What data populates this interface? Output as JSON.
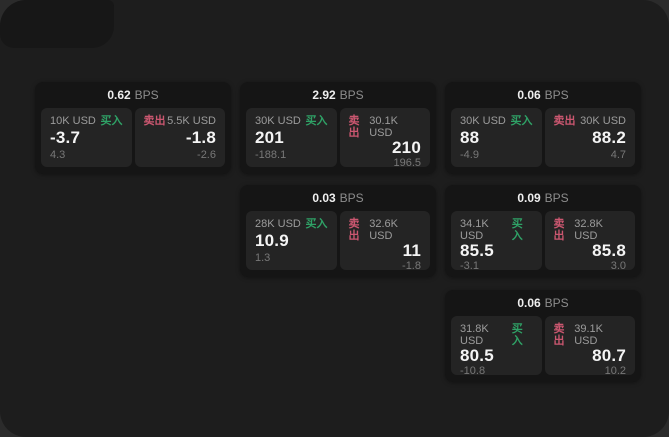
{
  "page": {
    "bps_unit": "BPS",
    "buy_label": "买入",
    "sell_label": "卖出"
  },
  "colors": {
    "background": "#2b2b2b",
    "surface": "#1d1d1d",
    "card": "#151515",
    "panel": "#242424",
    "buy_accent": "#2fa166",
    "sell_accent": "#cb5770"
  },
  "cards": [
    {
      "bps": "0.62",
      "row": 1,
      "col": 1,
      "buy": {
        "amount": "10K USD",
        "price": "-3.7",
        "delta": "4.3"
      },
      "sell": {
        "amount": "5.5K USD",
        "price": "-1.8",
        "delta": "-2.6"
      }
    },
    {
      "bps": "2.92",
      "row": 1,
      "col": 2,
      "buy": {
        "amount": "30K USD",
        "price": "201",
        "delta": "-188.1"
      },
      "sell": {
        "amount": "30.1K USD",
        "price": "210",
        "delta": "196.5"
      }
    },
    {
      "bps": "0.06",
      "row": 1,
      "col": 3,
      "buy": {
        "amount": "30K USD",
        "price": "88",
        "delta": "-4.9"
      },
      "sell": {
        "amount": "30K USD",
        "price": "88.2",
        "delta": "4.7"
      }
    },
    {
      "bps": "0.03",
      "row": 2,
      "col": 2,
      "buy": {
        "amount": "28K USD",
        "price": "10.9",
        "delta": "1.3"
      },
      "sell": {
        "amount": "32.6K USD",
        "price": "11",
        "delta": "-1.8"
      }
    },
    {
      "bps": "0.09",
      "row": 2,
      "col": 3,
      "buy": {
        "amount": "34.1K USD",
        "price": "85.5",
        "delta": "-3.1"
      },
      "sell": {
        "amount": "32.8K USD",
        "price": "85.8",
        "delta": "3.0"
      }
    },
    {
      "bps": "0.06",
      "row": 3,
      "col": 3,
      "buy": {
        "amount": "31.8K USD",
        "price": "80.5",
        "delta": "-10.8"
      },
      "sell": {
        "amount": "39.1K USD",
        "price": "80.7",
        "delta": "10.2"
      }
    }
  ]
}
